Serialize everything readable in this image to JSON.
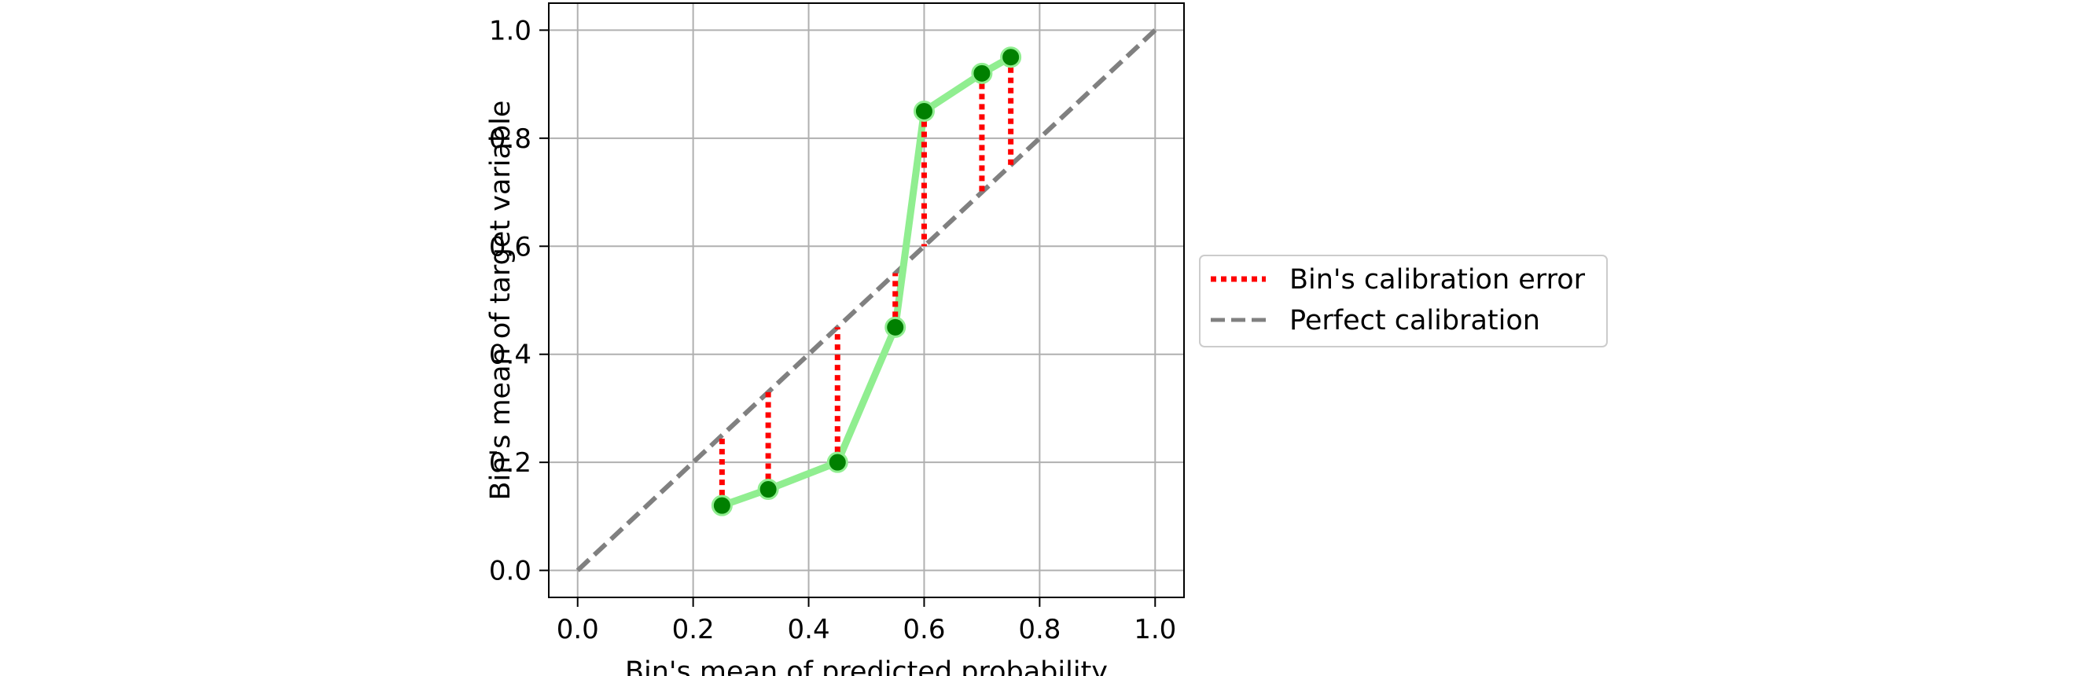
{
  "chart_data": {
    "type": "line",
    "title": "",
    "xlabel": "Bin's mean of predicted probability",
    "ylabel": "Bin's mean of target variable",
    "xlim": [
      -0.05,
      1.05
    ],
    "ylim": [
      -0.05,
      1.05
    ],
    "xticks": [
      "0.0",
      "0.2",
      "0.4",
      "0.6",
      "0.8",
      "1.0"
    ],
    "yticks": [
      "0.0",
      "0.2",
      "0.4",
      "0.6",
      "0.8",
      "1.0"
    ],
    "grid": true,
    "legend_position": "right, outside plot area",
    "series": [
      {
        "kind": "binned-calibration-curve",
        "color": "#90ee90",
        "marker_color": "#008000",
        "x": [
          0.25,
          0.33,
          0.45,
          0.55,
          0.6,
          0.7,
          0.75
        ],
        "y": [
          0.12,
          0.15,
          0.2,
          0.45,
          0.85,
          0.92,
          0.95
        ]
      },
      {
        "name": "Bin's calibration error",
        "kind": "error-segments",
        "color": "#ff0000",
        "style": "dotted"
      },
      {
        "name": "Perfect calibration",
        "kind": "diagonal",
        "color": "#808080",
        "style": "dashed",
        "x": [
          0,
          1
        ],
        "y": [
          0,
          1
        ]
      }
    ]
  }
}
